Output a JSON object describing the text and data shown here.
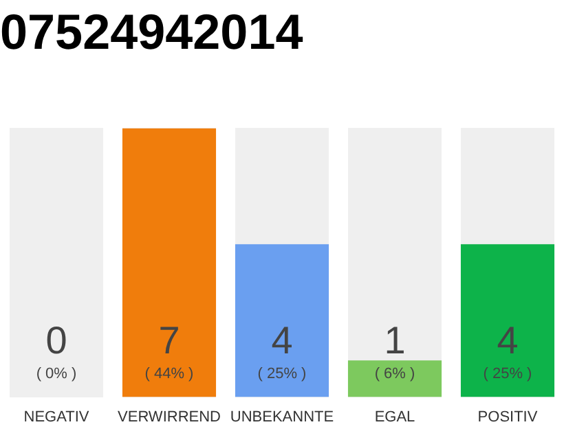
{
  "chart_data": {
    "type": "bar",
    "title": "07524942014",
    "categories": [
      "NEGATIV",
      "VERWIRREND",
      "UNBEKANNTE",
      "EGAL",
      "POSITIV"
    ],
    "values": [
      0,
      44,
      25,
      6,
      25
    ],
    "colors": [
      "#e0301e",
      "#f07d0c",
      "#6a9ff0",
      "#7dc95e",
      "#0db34a"
    ],
    "value_labels": [
      "( 0% )",
      "( 44% )",
      "( 25% )",
      "( 6% )",
      "( 25% )"
    ],
    "annotations": [
      "0",
      "7",
      "4",
      "1",
      "4"
    ],
    "tick_labels": "x",
    "grid": false,
    "legend": false
  }
}
